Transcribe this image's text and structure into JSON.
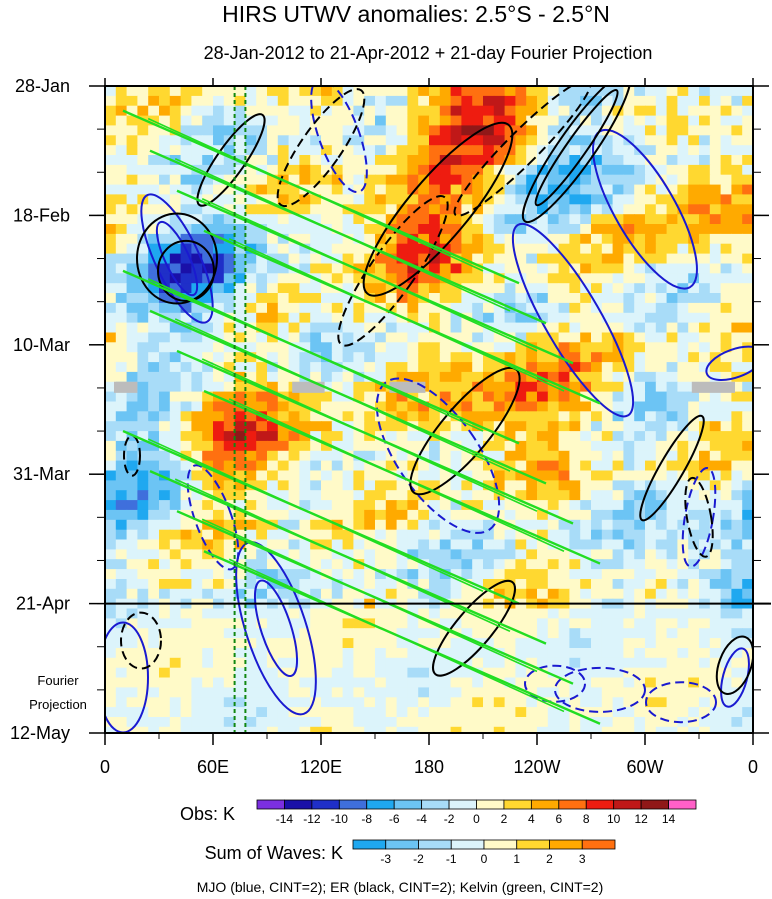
{
  "chart_data": {
    "type": "heatmap",
    "title": "HIRS UTWV anomalies: 2.5°S - 2.5°N",
    "subtitle": "28-Jan-2012 to 21-Apr-2012 + 21-day Fourier Projection",
    "x_axis": {
      "ticks": [
        {
          "lon": 0,
          "label": "0"
        },
        {
          "lon": 60,
          "label": "60E"
        },
        {
          "lon": 120,
          "label": "120E"
        },
        {
          "lon": 180,
          "label": "180"
        },
        {
          "lon": 240,
          "label": "120W"
        },
        {
          "lon": 300,
          "label": "60W"
        },
        {
          "lon": 360,
          "label": "0"
        }
      ],
      "range": [
        0,
        360
      ]
    },
    "y_axis": {
      "ticks": [
        {
          "day": 0,
          "label": "28-Jan"
        },
        {
          "day": 21,
          "label": "18-Feb"
        },
        {
          "day": 42,
          "label": "10-Mar"
        },
        {
          "day": 63,
          "label": "31-Mar"
        },
        {
          "day": 84,
          "label": "21-Apr"
        },
        {
          "day": 105,
          "label": "12-May"
        }
      ],
      "range_days": [
        0,
        105
      ],
      "projection_start_day": 84,
      "projection_label_line1": "Fourier",
      "projection_label_line2": "Projection"
    },
    "reference_longitudes": [
      72,
      78
    ],
    "missing_data_day": 48,
    "anomaly_features": [
      {
        "kind": "wet",
        "lon": 210,
        "day": 4,
        "amp": 10
      },
      {
        "kind": "wet",
        "lon": 170,
        "day": 24,
        "amp": 8
      },
      {
        "kind": "wet",
        "lon": 225,
        "day": 52,
        "amp": 7
      },
      {
        "kind": "wet",
        "lon": 75,
        "day": 58,
        "amp": 9
      },
      {
        "kind": "wet",
        "lon": 330,
        "day": 18,
        "amp": 6
      },
      {
        "kind": "dry",
        "lon": 50,
        "day": 30,
        "amp": 8
      },
      {
        "kind": "dry",
        "lon": 270,
        "day": 12,
        "amp": 6
      },
      {
        "kind": "dry",
        "lon": 30,
        "day": 62,
        "amp": 6
      },
      {
        "kind": "dry",
        "lon": 350,
        "day": 76,
        "amp": 5
      }
    ],
    "obs_colorbar": {
      "label": "Obs: K",
      "levels": [
        "-14",
        "-12",
        "-10",
        "-8",
        "-6",
        "-4",
        "-2",
        "0",
        "2",
        "4",
        "6",
        "8",
        "10",
        "12",
        "14"
      ],
      "colors": [
        "#7b2fe0",
        "#1a10a8",
        "#1f2fc8",
        "#3f6fdc",
        "#1fa8f0",
        "#6cc4f4",
        "#a8dcf8",
        "#dcf4fb",
        "#fffac8",
        "#ffd830",
        "#ffaa00",
        "#ff7010",
        "#ee1c10",
        "#c01818",
        "#901818",
        "#ff60c8"
      ]
    },
    "waves_colorbar": {
      "label": "Sum of Waves: K",
      "levels": [
        "-3",
        "-2",
        "-1",
        "0",
        "1",
        "2",
        "3"
      ],
      "colors": [
        "#1fa8f0",
        "#6cc4f4",
        "#a8dcf8",
        "#dcf4fb",
        "#fffac8",
        "#ffd830",
        "#ffaa00",
        "#ff7010"
      ]
    },
    "series": [
      {
        "name": "MJO",
        "color": "blue",
        "cint": 2
      },
      {
        "name": "ER",
        "color": "black",
        "cint": 2
      },
      {
        "name": "Kelvin",
        "color": "green",
        "cint": 2
      }
    ],
    "footnote": "MJO (blue, CINT=2); ER (black, CINT=2); Kelvin (green, CINT=2)"
  },
  "colors": {
    "mjo": "#1a1ad0",
    "er": "#000000",
    "kelvin": "#22dd22",
    "ref_line": "#118811",
    "missing": "#bcbcbc"
  }
}
